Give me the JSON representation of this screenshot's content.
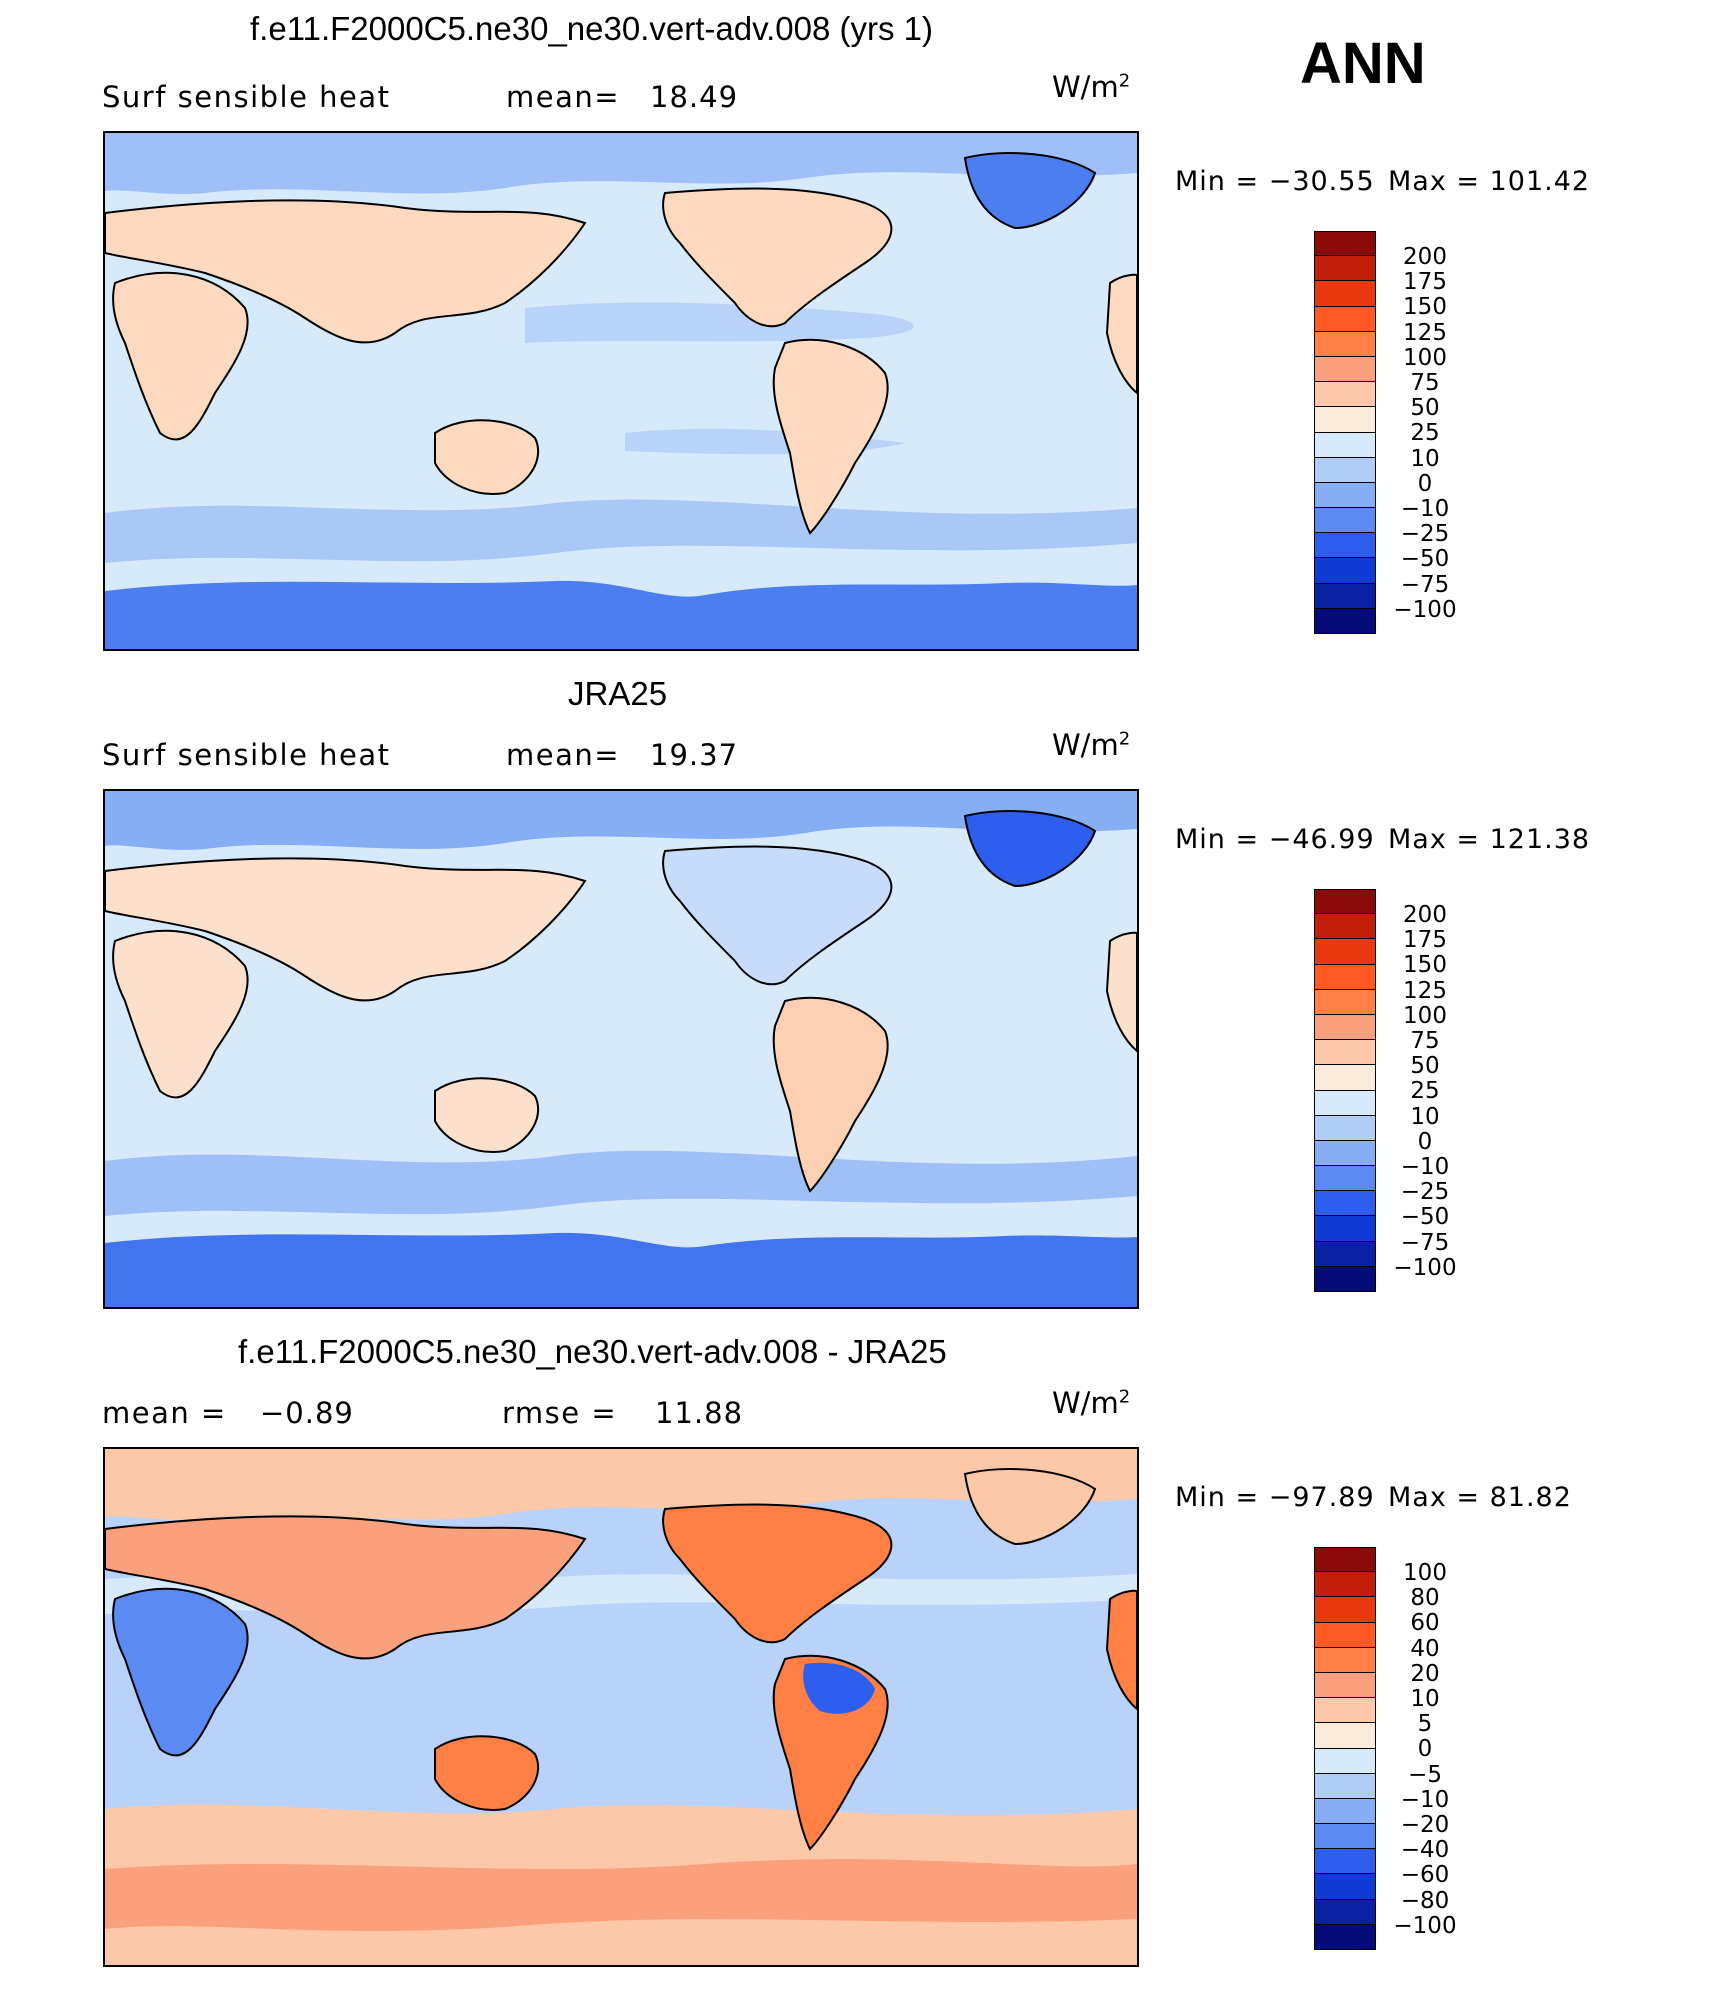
{
  "season": "ANN",
  "panels": [
    {
      "title": "f.e11.F2000C5.ne30_ne30.vert-adv.008 (yrs 1)",
      "left_label": "Surf  sensible  heat",
      "stat_label": "mean=",
      "stat_value": "18.49",
      "units": "W/m",
      "units_sup": "2",
      "min_label": "Min  =  −30.55",
      "max_label": "Max  =  101.42",
      "colorbar": {
        "levels": [
          "200",
          "175",
          "150",
          "125",
          "100",
          "75",
          "50",
          "25",
          "10",
          "0",
          "−10",
          "−25",
          "−50",
          "−75",
          "−100"
        ],
        "colors": [
          "#8B0A0A",
          "#C0200A",
          "#E8380F",
          "#FF5A24",
          "#FF7F45",
          "#FBA07C",
          "#FDC8A8",
          "#FCEBDA",
          "#D6EAFB",
          "#B0CDF8",
          "#85AEF5",
          "#5C8AF3",
          "#2D5EEE",
          "#103BD4",
          "#0A20A5",
          "#050C7A"
        ]
      }
    },
    {
      "title": "JRA25",
      "left_label": "Surf  sensible  heat",
      "stat_label": "mean=",
      "stat_value": "19.37",
      "units": "W/m",
      "units_sup": "2",
      "min_label": "Min  =  −46.99",
      "max_label": "Max  =  121.38",
      "colorbar": {
        "levels": [
          "200",
          "175",
          "150",
          "125",
          "100",
          "75",
          "50",
          "25",
          "10",
          "0",
          "−10",
          "−25",
          "−50",
          "−75",
          "−100"
        ],
        "colors": [
          "#8B0A0A",
          "#C0200A",
          "#E8380F",
          "#FF5A24",
          "#FF7F45",
          "#FBA07C",
          "#FDC8A8",
          "#FCEBDA",
          "#D6EAFB",
          "#B0CDF8",
          "#85AEF5",
          "#5C8AF3",
          "#2D5EEE",
          "#103BD4",
          "#0A20A5",
          "#050C7A"
        ]
      }
    },
    {
      "title": "f.e11.F2000C5.ne30_ne30.vert-adv.008 - JRA25",
      "left_label": "mean  =",
      "left_value": "−0.89",
      "stat_label": "rmse  =",
      "stat_value": "11.88",
      "units": "W/m",
      "units_sup": "2",
      "min_label": "Min  =  −97.89",
      "max_label": "Max  =    81.82",
      "colorbar": {
        "levels": [
          "100",
          "80",
          "60",
          "40",
          "20",
          "10",
          "5",
          "0",
          "−5",
          "−10",
          "−20",
          "−40",
          "−60",
          "−80",
          "−100"
        ],
        "colors": [
          "#8B0A0A",
          "#C0200A",
          "#E8380F",
          "#FF5A24",
          "#FF7F45",
          "#FBA07C",
          "#FDC8A8",
          "#FCEBDA",
          "#D6EAFB",
          "#B0CDF8",
          "#85AEF5",
          "#5C8AF3",
          "#2D5EEE",
          "#103BD4",
          "#0A20A5",
          "#050C7A"
        ]
      }
    }
  ],
  "map_fill": {
    "panel1": {
      "ocean": "#D6EAFB",
      "land": "#FDD9C0",
      "polar": "#4D7EF0",
      "band": "#9FC0F7"
    },
    "panel2": {
      "ocean": "#D6EAFB",
      "land": "#FDE0CC",
      "polar": "#4174EE",
      "band": "#9FC0F7"
    },
    "panel3": {
      "ocean": "#B8D2F9",
      "land": "#FBA07C",
      "polar": "#FBC4A4",
      "band": "#FDC8A8"
    }
  }
}
